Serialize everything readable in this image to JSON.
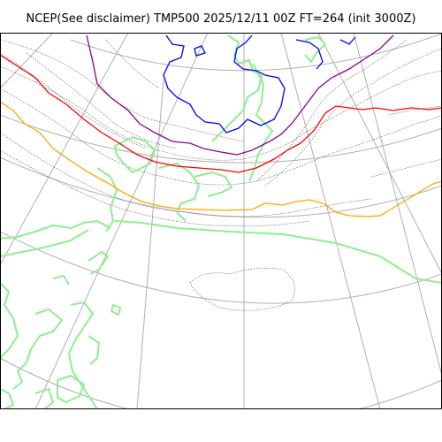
{
  "title": "NCEP(See disclaimer) TMP500 2025/12/11 00Z FT=264 (init 3000Z)",
  "colors": {
    "frame": "#000000",
    "graticule": "#b0b0b0",
    "coastline": "#90ee90",
    "isotherm_default": "#555555",
    "isotherm_purple": "#8b008b",
    "isotherm_red": "#ff0000",
    "isotherm_orange": "#ffa500",
    "isotherm_blue": "#0000ff"
  },
  "layers": [
    "graticule",
    "coastline",
    "temperature-contours"
  ]
}
